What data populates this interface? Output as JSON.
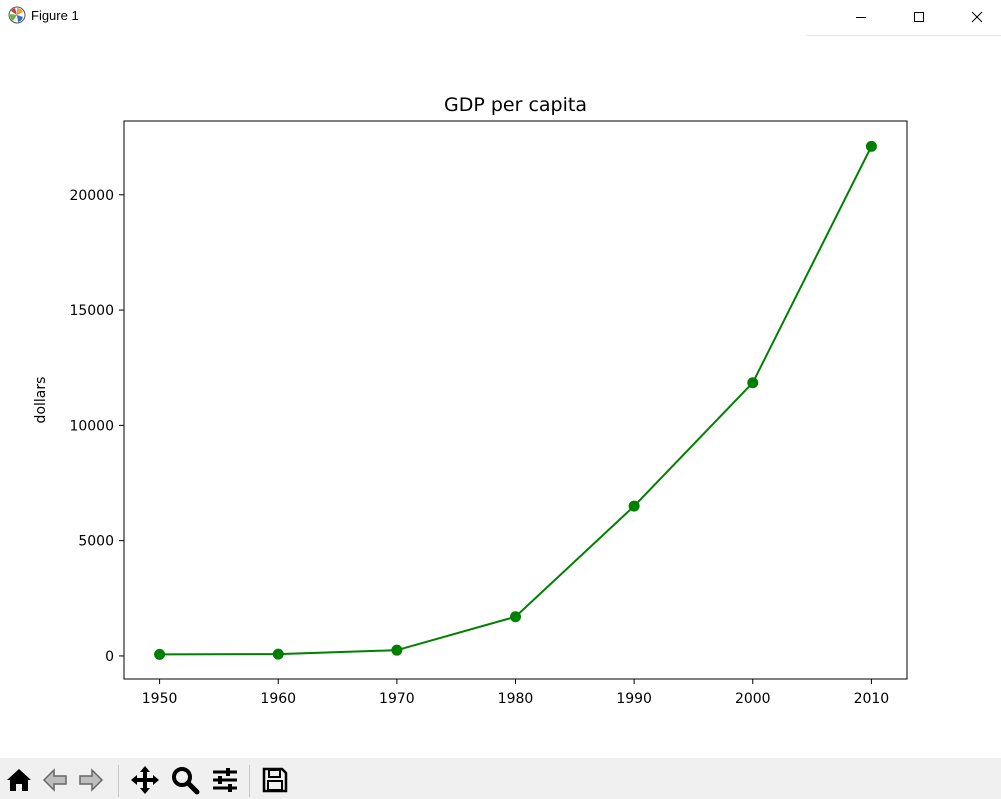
{
  "window": {
    "title": "Figure 1",
    "icons": [
      "matplotlib-icon",
      "minimize-icon",
      "maximize-icon",
      "close-icon"
    ]
  },
  "toolbar": {
    "buttons": [
      "home-icon",
      "back-icon",
      "forward-icon",
      "pan-icon",
      "zoom-icon",
      "configure-subplots-icon",
      "save-icon"
    ]
  },
  "chart_data": {
    "type": "line",
    "title": "GDP per capita",
    "xlabel": "",
    "ylabel": "dollars",
    "x": [
      1950,
      1960,
      1970,
      1980,
      1990,
      2000,
      2010
    ],
    "series": [
      {
        "values": [
          70,
          80,
          250,
          1700,
          6500,
          11850,
          22100
        ],
        "color": "#008000"
      }
    ],
    "xlim": [
      1947,
      2013
    ],
    "ylim": [
      -1000,
      23200
    ],
    "xticks": [
      "1950",
      "1960",
      "1970",
      "1980",
      "1990",
      "2000",
      "2010"
    ],
    "yticks": [
      "0",
      "5000",
      "10000",
      "15000",
      "20000"
    ],
    "grid": false,
    "markers": "circle"
  }
}
